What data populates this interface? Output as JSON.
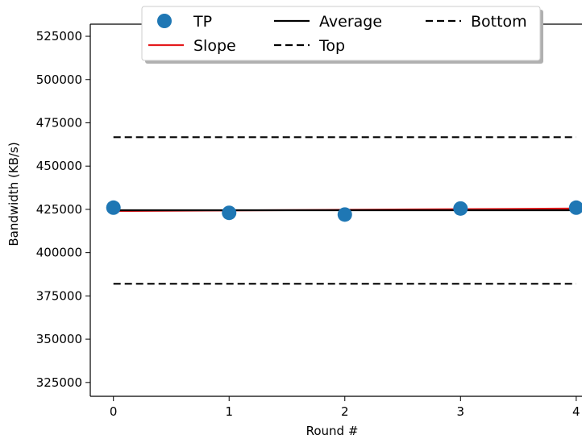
{
  "chart_data": {
    "type": "line",
    "title": "",
    "xlabel": "Round #",
    "ylabel": "Bandwidth (KB/s)",
    "x": [
      0,
      1,
      2,
      3,
      4
    ],
    "xlim": [
      -0.2,
      4.05
    ],
    "ylim": [
      317000,
      532000
    ],
    "x_ticks": [
      0,
      1,
      2,
      3,
      4
    ],
    "y_ticks": [
      325000,
      350000,
      375000,
      400000,
      425000,
      450000,
      475000,
      500000,
      525000
    ],
    "grid": false,
    "legend_position": "top",
    "series": [
      {
        "name": "TP",
        "kind": "scatter",
        "color": "#1f77b4",
        "x": [
          0,
          1,
          2,
          3,
          4
        ],
        "values": [
          426000,
          423000,
          422000,
          425500,
          426000
        ]
      },
      {
        "name": "Slope",
        "kind": "line",
        "style": "solid",
        "color": "#e41a1c",
        "x": [
          0,
          4
        ],
        "values": [
          424000,
          425500
        ]
      },
      {
        "name": "Average",
        "kind": "line",
        "style": "solid",
        "color": "#000000",
        "x": [
          0,
          4
        ],
        "values": [
          424500,
          424500
        ]
      },
      {
        "name": "Top",
        "kind": "line",
        "style": "dashed",
        "color": "#000000",
        "x": [
          0,
          4
        ],
        "values": [
          466700,
          466700
        ]
      },
      {
        "name": "Bottom",
        "kind": "line",
        "style": "dashed",
        "color": "#000000",
        "x": [
          0,
          4
        ],
        "values": [
          382000,
          382000
        ]
      }
    ],
    "legend": {
      "entries": [
        {
          "label": "TP",
          "series": "TP"
        },
        {
          "label": "Average",
          "series": "Average"
        },
        {
          "label": "Bottom",
          "series": "Bottom"
        },
        {
          "label": "Slope",
          "series": "Slope"
        },
        {
          "label": "Top",
          "series": "Top"
        }
      ]
    }
  }
}
